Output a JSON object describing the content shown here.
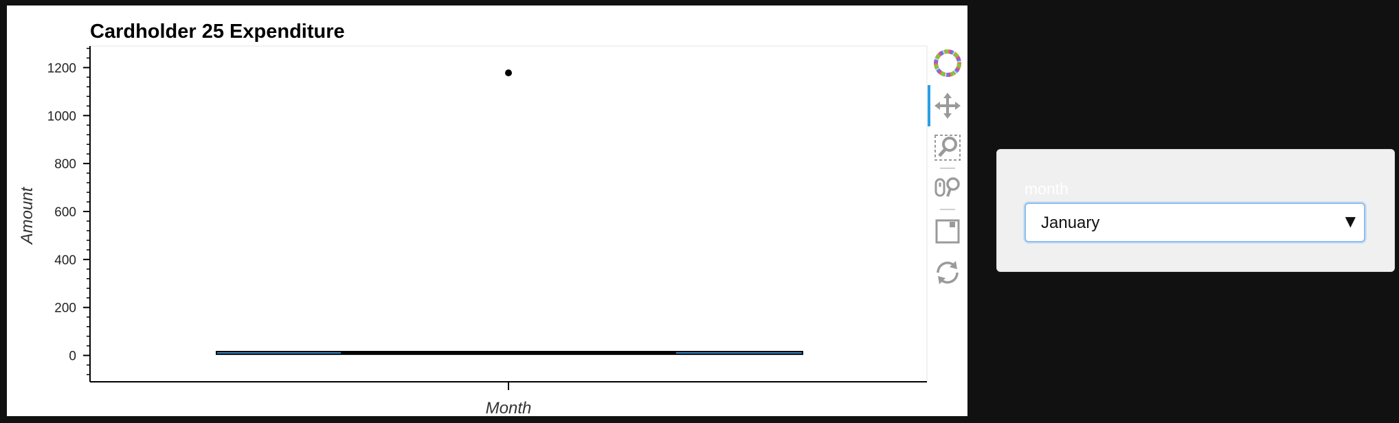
{
  "chart_data": {
    "type": "box",
    "title": "Cardholder 25 Expenditure",
    "xlabel": "Month",
    "ylabel": "Amount",
    "ylim": [
      -110,
      1290
    ],
    "yticks": [
      0,
      200,
      400,
      600,
      800,
      1000,
      1200
    ],
    "yticklabels": [
      "0",
      "200",
      "400",
      "600",
      "800",
      "1000",
      "1200"
    ],
    "boxes": [
      {
        "category": "Month",
        "min": 5,
        "q1": 6,
        "median": 10,
        "q3": 14,
        "max": 16,
        "outliers": [
          1178
        ]
      }
    ]
  },
  "toolbar": {
    "tools": [
      {
        "name": "bokeh-logo-icon"
      },
      {
        "name": "pan-tool-icon"
      },
      {
        "name": "box-zoom-tool-icon"
      },
      {
        "name": "wheel-zoom-tool-icon"
      },
      {
        "name": "save-tool-icon"
      },
      {
        "name": "reset-tool-icon"
      }
    ]
  },
  "widget": {
    "label": "month",
    "selected": "January"
  }
}
